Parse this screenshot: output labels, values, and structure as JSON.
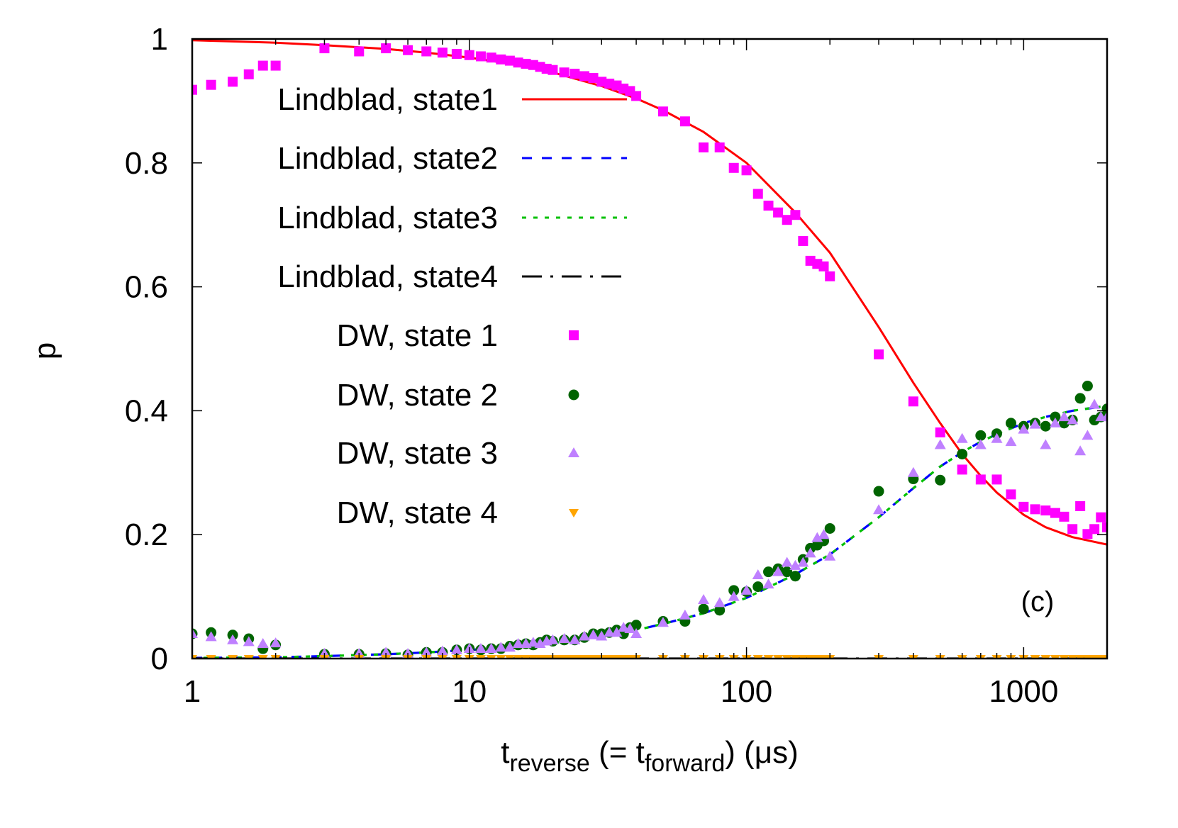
{
  "chart_data": {
    "type": "line+scatter",
    "title": "",
    "panel_label": "(c)",
    "xlabel": {
      "main": "t",
      "sub": "reverse",
      "mid": " (= t",
      "sub2": "forward",
      "tail": ") (μs)"
    },
    "xlabel_plain": "t_reverse (= t_forward) (μs)",
    "ylabel": "p",
    "xscale": "log",
    "xlim": [
      1,
      2000
    ],
    "ylim": [
      0,
      1
    ],
    "grid": false,
    "legend_position": "upper-left inside",
    "xticks": [
      {
        "value": 1,
        "label": "1"
      },
      {
        "value": 10,
        "label": "10"
      },
      {
        "value": 100,
        "label": "100"
      },
      {
        "value": 1000,
        "label": "1000"
      }
    ],
    "yticks": [
      {
        "value": 0,
        "label": "0"
      },
      {
        "value": 0.2,
        "label": "0.2"
      },
      {
        "value": 0.4,
        "label": "0.4"
      },
      {
        "value": 0.6,
        "label": "0.6"
      },
      {
        "value": 0.8,
        "label": "0.8"
      },
      {
        "value": 1,
        "label": "1"
      }
    ],
    "series": [
      {
        "name": "Lindblad, state1",
        "kind": "line",
        "style": "solid",
        "color": "#ff0000",
        "x": [
          1,
          2,
          3,
          5,
          7,
          10,
          15,
          20,
          30,
          40,
          50,
          70,
          100,
          150,
          200,
          300,
          400,
          500,
          600,
          700,
          800,
          1000,
          1200,
          1500,
          2000
        ],
        "values": [
          0.998,
          0.994,
          0.99,
          0.984,
          0.978,
          0.97,
          0.958,
          0.946,
          0.924,
          0.904,
          0.885,
          0.85,
          0.8,
          0.72,
          0.655,
          0.535,
          0.445,
          0.38,
          0.33,
          0.295,
          0.268,
          0.232,
          0.212,
          0.196,
          0.184
        ]
      },
      {
        "name": "Lindblad, state2",
        "kind": "line",
        "style": "dashed",
        "color": "#0000ff",
        "x": [
          1,
          2,
          3,
          5,
          7,
          10,
          15,
          20,
          30,
          40,
          50,
          70,
          100,
          150,
          200,
          300,
          400,
          500,
          600,
          700,
          800,
          1000,
          1200,
          1500,
          2000
        ],
        "values": [
          0.001,
          0.002,
          0.004,
          0.007,
          0.01,
          0.014,
          0.019,
          0.025,
          0.036,
          0.046,
          0.056,
          0.073,
          0.098,
          0.136,
          0.168,
          0.228,
          0.275,
          0.31,
          0.333,
          0.35,
          0.362,
          0.38,
          0.39,
          0.4,
          0.408
        ]
      },
      {
        "name": "Lindblad, state3",
        "kind": "line",
        "style": "dotted",
        "color": "#00c000",
        "x": [
          1,
          2,
          3,
          5,
          7,
          10,
          15,
          20,
          30,
          40,
          50,
          70,
          100,
          150,
          200,
          300,
          400,
          500,
          600,
          700,
          800,
          1000,
          1200,
          1500,
          2000
        ],
        "values": [
          0.001,
          0.002,
          0.004,
          0.007,
          0.01,
          0.014,
          0.019,
          0.025,
          0.036,
          0.046,
          0.056,
          0.073,
          0.098,
          0.136,
          0.168,
          0.228,
          0.275,
          0.31,
          0.333,
          0.35,
          0.362,
          0.38,
          0.39,
          0.4,
          0.408
        ]
      },
      {
        "name": "Lindblad, state4",
        "kind": "line",
        "style": "dash-dot",
        "color": "#000000",
        "x": [
          1,
          2000
        ],
        "values": [
          0,
          0
        ]
      },
      {
        "name": "DW, state 1",
        "kind": "scatter",
        "marker": "square",
        "color": "#ff00ff",
        "x": [
          1,
          1.17,
          1.4,
          1.6,
          1.8,
          2,
          3,
          4,
          5,
          6,
          7,
          8,
          9,
          10,
          11,
          12,
          13,
          14,
          15,
          16,
          17,
          18,
          19,
          20,
          22,
          24,
          26,
          28,
          30,
          32,
          34,
          36,
          38,
          40,
          50,
          60,
          70,
          80,
          90,
          100,
          110,
          120,
          130,
          140,
          150,
          160,
          170,
          180,
          190,
          200,
          300,
          400,
          500,
          600,
          700,
          800,
          900,
          1000,
          1100,
          1200,
          1300,
          1400,
          1500,
          1600,
          1700,
          1800,
          1900,
          2000
        ],
        "values": [
          0.918,
          0.926,
          0.931,
          0.943,
          0.957,
          0.957,
          0.985,
          0.98,
          0.985,
          0.982,
          0.98,
          0.978,
          0.976,
          0.974,
          0.972,
          0.97,
          0.967,
          0.965,
          0.962,
          0.96,
          0.958,
          0.955,
          0.952,
          0.95,
          0.946,
          0.944,
          0.94,
          0.937,
          0.931,
          0.928,
          0.925,
          0.92,
          0.916,
          0.908,
          0.883,
          0.867,
          0.825,
          0.825,
          0.792,
          0.788,
          0.75,
          0.731,
          0.72,
          0.708,
          0.716,
          0.674,
          0.642,
          0.637,
          0.633,
          0.617,
          0.491,
          0.415,
          0.365,
          0.305,
          0.289,
          0.289,
          0.265,
          0.245,
          0.241,
          0.239,
          0.235,
          0.229,
          0.209,
          0.246,
          0.201,
          0.209,
          0.228,
          0.212
        ]
      },
      {
        "name": "DW, state 2",
        "kind": "scatter",
        "marker": "circle",
        "color": "#006400",
        "x": [
          1,
          1.17,
          1.4,
          1.6,
          1.8,
          2,
          3,
          4,
          5,
          6,
          7,
          8,
          9,
          10,
          11,
          12,
          13,
          14,
          15,
          16,
          17,
          18,
          19,
          20,
          22,
          24,
          26,
          28,
          30,
          32,
          34,
          36,
          38,
          40,
          50,
          60,
          70,
          80,
          90,
          100,
          110,
          120,
          130,
          140,
          150,
          160,
          170,
          180,
          190,
          200,
          300,
          400,
          500,
          600,
          700,
          800,
          900,
          1000,
          1100,
          1200,
          1300,
          1400,
          1500,
          1600,
          1700,
          1800,
          1900,
          2000
        ],
        "values": [
          0.04,
          0.042,
          0.038,
          0.032,
          0.016,
          0.022,
          0.007,
          0.007,
          0.008,
          0.006,
          0.01,
          0.01,
          0.014,
          0.016,
          0.014,
          0.016,
          0.016,
          0.02,
          0.022,
          0.024,
          0.022,
          0.026,
          0.03,
          0.028,
          0.03,
          0.03,
          0.034,
          0.04,
          0.04,
          0.042,
          0.046,
          0.04,
          0.05,
          0.054,
          0.06,
          0.06,
          0.08,
          0.078,
          0.11,
          0.108,
          0.116,
          0.14,
          0.145,
          0.14,
          0.133,
          0.16,
          0.178,
          0.183,
          0.19,
          0.21,
          0.27,
          0.29,
          0.288,
          0.33,
          0.36,
          0.363,
          0.38,
          0.375,
          0.38,
          0.375,
          0.39,
          0.38,
          0.385,
          0.42,
          0.44,
          0.385,
          0.39,
          0.403
        ]
      },
      {
        "name": "DW, state 3",
        "kind": "scatter",
        "marker": "triangle-up",
        "color": "#bf80ff",
        "x": [
          1,
          1.17,
          1.4,
          1.6,
          1.8,
          2,
          3,
          4,
          5,
          6,
          7,
          8,
          9,
          10,
          11,
          12,
          13,
          14,
          15,
          16,
          17,
          18,
          19,
          20,
          22,
          24,
          26,
          28,
          30,
          32,
          34,
          36,
          38,
          40,
          50,
          60,
          70,
          80,
          90,
          100,
          110,
          120,
          130,
          140,
          150,
          160,
          170,
          180,
          190,
          200,
          300,
          400,
          500,
          600,
          700,
          800,
          900,
          1000,
          1100,
          1200,
          1300,
          1400,
          1500,
          1600,
          1700,
          1800,
          1900,
          2000
        ],
        "values": [
          0.04,
          0.035,
          0.03,
          0.027,
          0.024,
          0.025,
          0.008,
          0.008,
          0.01,
          0.008,
          0.01,
          0.012,
          0.014,
          0.016,
          0.016,
          0.016,
          0.018,
          0.018,
          0.024,
          0.024,
          0.026,
          0.024,
          0.028,
          0.03,
          0.032,
          0.03,
          0.036,
          0.038,
          0.036,
          0.042,
          0.042,
          0.05,
          0.048,
          0.04,
          0.058,
          0.07,
          0.095,
          0.09,
          0.1,
          0.11,
          0.135,
          0.12,
          0.14,
          0.155,
          0.15,
          0.155,
          0.17,
          0.195,
          0.2,
          0.165,
          0.24,
          0.3,
          0.345,
          0.355,
          0.345,
          0.355,
          0.35,
          0.37,
          0.378,
          0.345,
          0.38,
          0.39,
          0.385,
          0.335,
          0.36,
          0.41,
          0.39,
          0.39
        ]
      },
      {
        "name": "DW, state 4",
        "kind": "scatter",
        "marker": "triangle-down",
        "color": "#ffa500",
        "x": [
          1,
          1.17,
          1.4,
          1.6,
          1.8,
          2,
          3,
          4,
          5,
          6,
          7,
          8,
          9,
          10,
          11,
          12,
          13,
          14,
          15,
          16,
          17,
          18,
          19,
          20,
          21,
          22,
          23,
          24,
          25,
          26,
          27,
          28,
          29,
          30,
          31,
          32,
          33,
          34,
          35,
          36,
          37,
          38,
          39,
          40,
          50,
          60,
          70,
          80,
          90,
          100,
          110,
          120,
          130,
          140,
          150,
          160,
          170,
          180,
          190,
          200,
          300,
          400,
          500,
          600,
          700,
          800,
          900,
          1000,
          1100,
          1200,
          1300,
          1400,
          1500,
          1600,
          1700,
          1800,
          1900,
          2000
        ],
        "values": [
          0,
          0,
          0,
          0,
          0,
          0,
          0,
          0,
          0,
          0,
          0,
          0,
          0,
          0,
          0,
          0,
          0,
          0,
          0,
          0,
          0,
          0,
          0,
          0,
          0,
          0,
          0,
          0,
          0,
          0,
          0,
          0,
          0,
          0,
          0,
          0,
          0,
          0,
          0,
          0,
          0,
          0,
          0,
          0,
          0,
          0,
          0,
          0,
          0,
          0,
          0,
          0,
          0,
          0,
          0,
          0,
          0,
          0,
          0,
          0,
          0,
          0,
          0,
          0,
          0,
          0,
          0,
          0,
          0,
          0,
          0,
          0,
          0,
          0,
          0,
          0,
          0,
          0
        ]
      }
    ]
  }
}
